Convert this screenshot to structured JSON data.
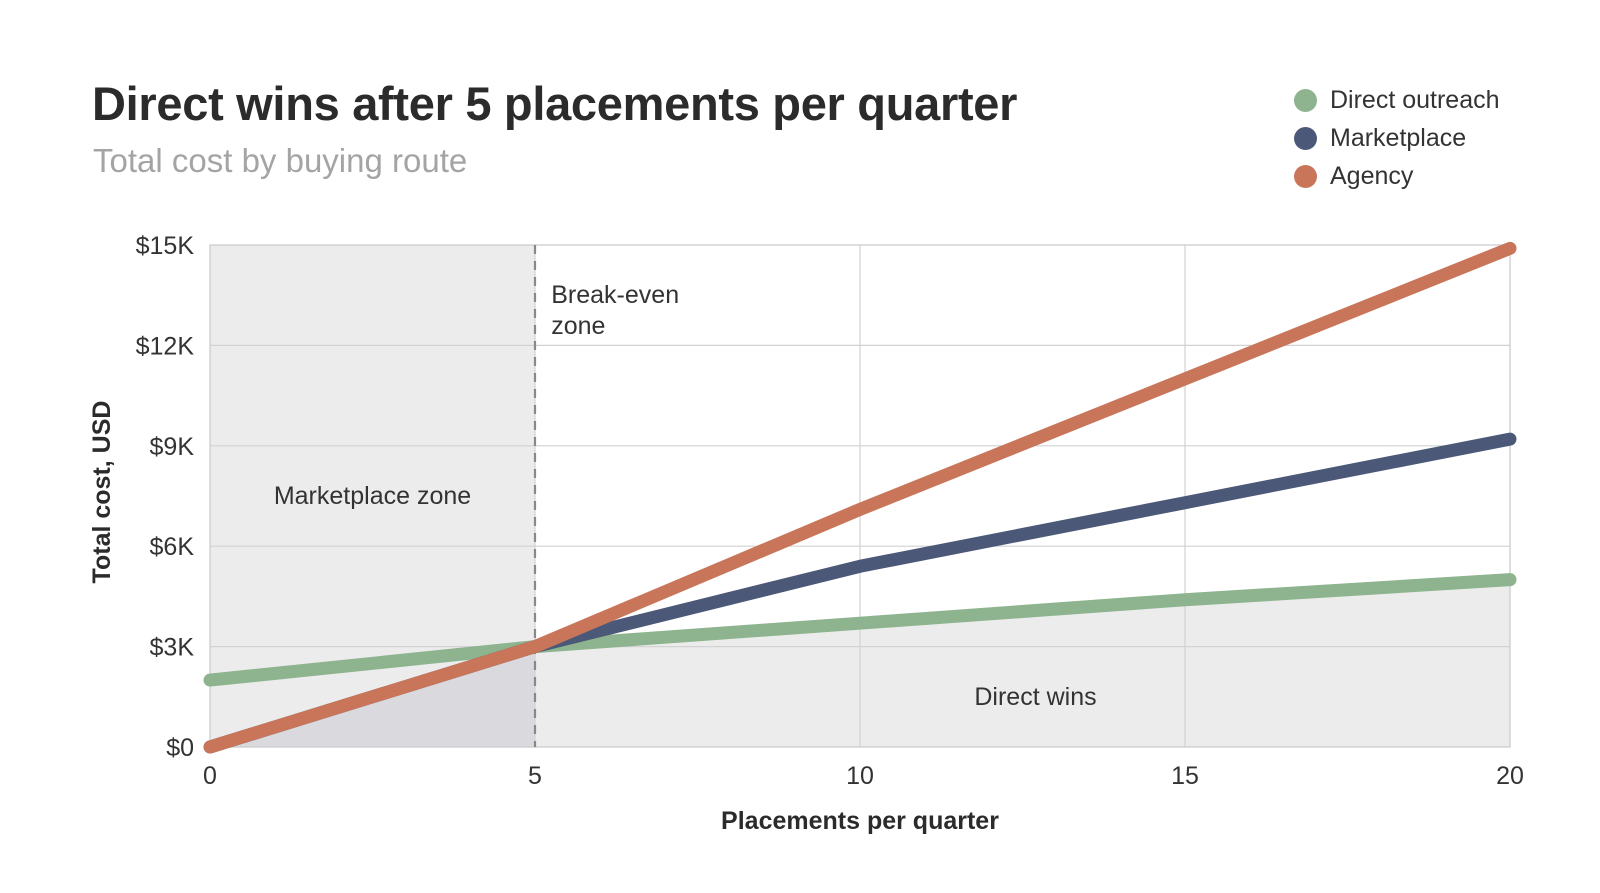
{
  "header": {
    "title": "Direct wins after 5 placements per quarter",
    "subtitle": "Total cost by buying route"
  },
  "colors": {
    "direct": "#8db48e",
    "marketplace": "#4b5877",
    "agency": "#c9755a",
    "zone_shade": "#ececec",
    "breakeven_shade": "#d9d9de"
  },
  "chart_data": {
    "type": "line",
    "title": "Direct wins after 5 placements per quarter",
    "subtitle": "Total cost by buying route",
    "xlabel": "Placements per quarter",
    "ylabel": "Total cost, USD",
    "xlim": [
      0,
      20
    ],
    "ylim": [
      0,
      15000
    ],
    "x_ticks": [
      0,
      5,
      10,
      15,
      20
    ],
    "x_tick_labels": [
      "0",
      "5",
      "10",
      "15",
      "20"
    ],
    "y_ticks": [
      0,
      3000,
      6000,
      9000,
      12000,
      15000
    ],
    "y_tick_labels": [
      "$0",
      "$3K",
      "$6K",
      "$9K",
      "$12K",
      "$15K"
    ],
    "grid": true,
    "legend_position": "top-right",
    "series": [
      {
        "name": "Direct outreach",
        "color_key": "direct",
        "x": [
          0,
          5,
          10,
          15,
          20
        ],
        "values": [
          2000,
          3000,
          3700,
          4400,
          5000
        ]
      },
      {
        "name": "Marketplace",
        "color_key": "marketplace",
        "x": [
          0,
          5,
          10,
          15,
          20
        ],
        "values": [
          0,
          3000,
          5400,
          7300,
          9200
        ]
      },
      {
        "name": "Agency",
        "color_key": "agency",
        "x": [
          0,
          5,
          10,
          15,
          20
        ],
        "values": [
          0,
          3000,
          7100,
          11000,
          14900
        ]
      }
    ],
    "reference_line": {
      "x": 5
    },
    "zones": [
      {
        "label": "Marketplace zone",
        "x_range": [
          0,
          5
        ],
        "label_at": [
          2.5,
          7500
        ]
      },
      {
        "label": "Break-even zone",
        "label_lines": [
          "Break-even",
          "zone"
        ],
        "label_at": [
          5.25,
          13500
        ]
      },
      {
        "label": "Direct wins",
        "x_range": [
          5,
          20
        ],
        "label_at": [
          12.7,
          1500
        ]
      }
    ]
  }
}
